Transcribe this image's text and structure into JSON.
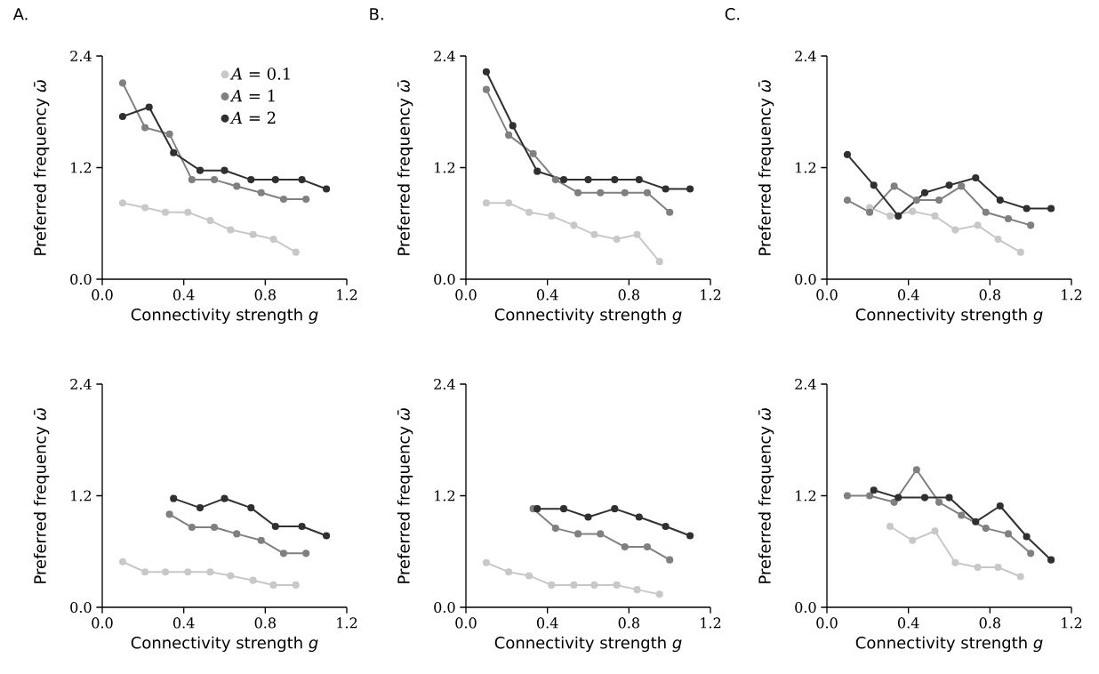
{
  "chart_data": [
    {
      "type": "line",
      "title": "A.",
      "xlabel": "Connectivity strength *g*",
      "ylabel": "Preferred frequency *ω̄*",
      "xlim": [
        0,
        1.2
      ],
      "ylim": [
        0,
        2.4
      ],
      "xticks": [
        {
          "value": 0,
          "label": "0.0"
        },
        {
          "value": 0.4,
          "label": "0.4"
        },
        {
          "value": 0.8,
          "label": "0.8"
        },
        {
          "value": 1.2,
          "label": "1.2"
        }
      ],
      "yticks": [
        {
          "value": 0,
          "label": "0.0"
        },
        {
          "value": 1.2,
          "label": "1.2"
        },
        {
          "value": 2.4,
          "label": "2.4"
        }
      ],
      "marker": "circle",
      "line_style": "solid",
      "legend": "top right",
      "series": [
        {
          "name": "*A* = 0.1",
          "color": "#c8c8c8",
          "x": [
            0.1,
            0.21,
            0.31,
            0.42,
            0.53,
            0.63,
            0.74,
            0.84,
            0.95
          ],
          "values": [
            0.82,
            0.77,
            0.72,
            0.72,
            0.63,
            0.53,
            0.48,
            0.43,
            0.29
          ]
        },
        {
          "name": "*A* = 1",
          "color": "#808080",
          "x": [
            0.1,
            0.21,
            0.33,
            0.44,
            0.55,
            0.66,
            0.78,
            0.89,
            1.0
          ],
          "values": [
            2.11,
            1.63,
            1.56,
            1.07,
            1.07,
            1.0,
            0.93,
            0.86,
            0.86
          ]
        },
        {
          "name": "*A* = 2",
          "color": "#303030",
          "x": [
            0.1,
            0.23,
            0.35,
            0.48,
            0.6,
            0.73,
            0.85,
            0.98,
            1.1
          ],
          "values": [
            1.75,
            1.85,
            1.36,
            1.17,
            1.17,
            1.07,
            1.07,
            1.07,
            0.97
          ]
        }
      ]
    },
    {
      "type": "line",
      "title": "B.",
      "xlabel": "Connectivity strength *g*",
      "ylabel": "Preferred frequency *ω̄*",
      "xlim": [
        0,
        1.2
      ],
      "ylim": [
        0,
        2.4
      ],
      "xticks": [
        {
          "value": 0,
          "label": "0.0"
        },
        {
          "value": 0.4,
          "label": "0.4"
        },
        {
          "value": 0.8,
          "label": "0.8"
        },
        {
          "value": 1.2,
          "label": "1.2"
        }
      ],
      "yticks": [
        {
          "value": 0,
          "label": "0.0"
        },
        {
          "value": 1.2,
          "label": "1.2"
        },
        {
          "value": 2.4,
          "label": "2.4"
        }
      ],
      "marker": "circle",
      "line_style": "solid",
      "series": [
        {
          "color": "#c8c8c8",
          "x": [
            0.1,
            0.21,
            0.31,
            0.42,
            0.53,
            0.63,
            0.74,
            0.84,
            0.95
          ],
          "values": [
            0.82,
            0.82,
            0.72,
            0.68,
            0.58,
            0.48,
            0.43,
            0.48,
            0.19
          ]
        },
        {
          "color": "#808080",
          "x": [
            0.1,
            0.21,
            0.33,
            0.44,
            0.55,
            0.66,
            0.78,
            0.89,
            1.0
          ],
          "values": [
            2.04,
            1.55,
            1.35,
            1.07,
            0.93,
            0.93,
            0.93,
            0.93,
            0.72
          ]
        },
        {
          "color": "#303030",
          "x": [
            0.1,
            0.23,
            0.35,
            0.48,
            0.6,
            0.73,
            0.85,
            0.98,
            1.1
          ],
          "values": [
            2.23,
            1.65,
            1.16,
            1.07,
            1.07,
            1.07,
            1.07,
            0.97,
            0.97
          ]
        }
      ]
    },
    {
      "type": "line",
      "title": "C.",
      "xlabel": "Connectivity strength *g*",
      "ylabel": "Preferred frequency *ω̄*",
      "xlim": [
        0,
        1.2
      ],
      "ylim": [
        0,
        2.4
      ],
      "xticks": [
        {
          "value": 0,
          "label": "0.0"
        },
        {
          "value": 0.4,
          "label": "0.4"
        },
        {
          "value": 0.8,
          "label": "0.8"
        },
        {
          "value": 1.2,
          "label": "1.2"
        }
      ],
      "yticks": [
        {
          "value": 0,
          "label": "0.0"
        },
        {
          "value": 1.2,
          "label": "1.2"
        },
        {
          "value": 2.4,
          "label": "2.4"
        }
      ],
      "marker": "circle",
      "line_style": "solid",
      "series": [
        {
          "color": "#c8c8c8",
          "x": [
            0.21,
            0.31,
            0.42,
            0.53,
            0.63,
            0.74,
            0.84,
            0.95
          ],
          "values": [
            0.77,
            0.68,
            0.73,
            0.68,
            0.53,
            0.58,
            0.43,
            0.29
          ]
        },
        {
          "color": "#808080",
          "x": [
            0.1,
            0.21,
            0.33,
            0.44,
            0.55,
            0.66,
            0.78,
            0.89,
            1.0
          ],
          "values": [
            0.85,
            0.72,
            1.0,
            0.85,
            0.85,
            1.0,
            0.72,
            0.65,
            0.58
          ]
        },
        {
          "color": "#303030",
          "x": [
            0.1,
            0.23,
            0.35,
            0.48,
            0.6,
            0.73,
            0.85,
            0.98,
            1.1
          ],
          "values": [
            1.34,
            1.01,
            0.68,
            0.93,
            1.01,
            1.09,
            0.85,
            0.76,
            0.76
          ]
        }
      ]
    },
    {
      "type": "line",
      "xlabel": "Connectivity strength *g*",
      "ylabel": "Preferred frequency *ω̄*",
      "xlim": [
        0,
        1.2
      ],
      "ylim": [
        0,
        2.4
      ],
      "xticks": [
        {
          "value": 0,
          "label": "0.0"
        },
        {
          "value": 0.4,
          "label": "0.4"
        },
        {
          "value": 0.8,
          "label": "0.8"
        },
        {
          "value": 1.2,
          "label": "1.2"
        }
      ],
      "yticks": [
        {
          "value": 0,
          "label": "0.0"
        },
        {
          "value": 1.2,
          "label": "1.2"
        },
        {
          "value": 2.4,
          "label": "2.4"
        }
      ],
      "marker": "circle",
      "line_style": "solid",
      "series": [
        {
          "color": "#c8c8c8",
          "x": [
            0.1,
            0.21,
            0.31,
            0.42,
            0.53,
            0.63,
            0.74,
            0.84,
            0.95
          ],
          "values": [
            0.49,
            0.38,
            0.38,
            0.38,
            0.38,
            0.34,
            0.29,
            0.24,
            0.24
          ]
        },
        {
          "color": "#808080",
          "x": [
            0.33,
            0.44,
            0.55,
            0.66,
            0.78,
            0.89,
            1.0
          ],
          "values": [
            1.0,
            0.86,
            0.86,
            0.79,
            0.72,
            0.58,
            0.58
          ]
        },
        {
          "color": "#303030",
          "x": [
            0.35,
            0.48,
            0.6,
            0.73,
            0.85,
            0.98,
            1.1
          ],
          "values": [
            1.17,
            1.07,
            1.17,
            1.07,
            0.87,
            0.87,
            0.77
          ]
        }
      ]
    },
    {
      "type": "line",
      "xlabel": "Connectivity strength *g*",
      "ylabel": "Preferred frequency *ω̄*",
      "xlim": [
        0,
        1.2
      ],
      "ylim": [
        0,
        2.4
      ],
      "xticks": [
        {
          "value": 0,
          "label": "0.0"
        },
        {
          "value": 0.4,
          "label": "0.4"
        },
        {
          "value": 0.8,
          "label": "0.8"
        },
        {
          "value": 1.2,
          "label": "1.2"
        }
      ],
      "yticks": [
        {
          "value": 0,
          "label": "0.0"
        },
        {
          "value": 1.2,
          "label": "1.2"
        },
        {
          "value": 2.4,
          "label": "2.4"
        }
      ],
      "marker": "circle",
      "line_style": "solid",
      "series": [
        {
          "color": "#c8c8c8",
          "x": [
            0.1,
            0.21,
            0.31,
            0.42,
            0.53,
            0.63,
            0.74,
            0.84,
            0.95
          ],
          "values": [
            0.48,
            0.38,
            0.34,
            0.24,
            0.24,
            0.24,
            0.24,
            0.19,
            0.14
          ]
        },
        {
          "color": "#808080",
          "x": [
            0.33,
            0.44,
            0.55,
            0.66,
            0.78,
            0.89,
            1.0
          ],
          "values": [
            1.06,
            0.85,
            0.79,
            0.79,
            0.65,
            0.65,
            0.51
          ]
        },
        {
          "color": "#303030",
          "x": [
            0.35,
            0.48,
            0.6,
            0.73,
            0.85,
            0.98,
            1.1
          ],
          "values": [
            1.06,
            1.06,
            0.97,
            1.06,
            0.97,
            0.87,
            0.77
          ]
        }
      ]
    },
    {
      "type": "line",
      "xlabel": "Connectivity strength *g*",
      "ylabel": "Preferred frequency *ω̄*",
      "xlim": [
        0,
        1.2
      ],
      "ylim": [
        0,
        2.4
      ],
      "xticks": [
        {
          "value": 0,
          "label": "0.0"
        },
        {
          "value": 0.4,
          "label": "0.4"
        },
        {
          "value": 0.8,
          "label": "0.8"
        },
        {
          "value": 1.2,
          "label": "1.2"
        }
      ],
      "yticks": [
        {
          "value": 0,
          "label": "0.0"
        },
        {
          "value": 1.2,
          "label": "1.2"
        },
        {
          "value": 2.4,
          "label": "2.4"
        }
      ],
      "marker": "circle",
      "line_style": "solid",
      "series": [
        {
          "color": "#c8c8c8",
          "x": [
            0.31,
            0.42,
            0.53,
            0.63,
            0.74,
            0.84,
            0.95
          ],
          "values": [
            0.87,
            0.72,
            0.82,
            0.48,
            0.43,
            0.43,
            0.33
          ]
        },
        {
          "color": "#808080",
          "x": [
            0.1,
            0.21,
            0.33,
            0.44,
            0.55,
            0.66,
            0.78,
            0.89,
            1.0
          ],
          "values": [
            1.2,
            1.2,
            1.13,
            1.48,
            1.13,
            0.99,
            0.85,
            0.79,
            0.58
          ]
        },
        {
          "color": "#303030",
          "x": [
            0.23,
            0.35,
            0.48,
            0.6,
            0.73,
            0.85,
            0.98,
            1.1
          ],
          "values": [
            1.26,
            1.18,
            1.18,
            1.18,
            0.92,
            1.09,
            0.76,
            0.51
          ]
        }
      ]
    }
  ]
}
